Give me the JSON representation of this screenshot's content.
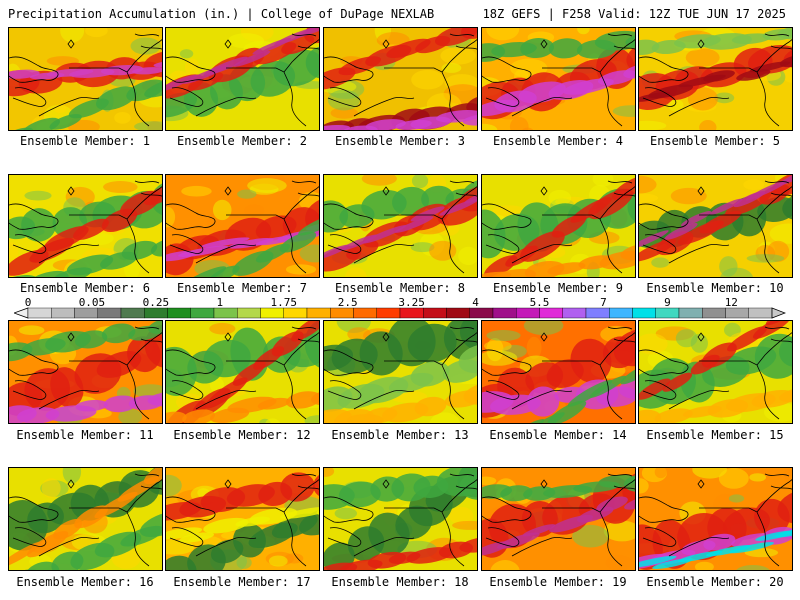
{
  "header": {
    "title": "Precipitation Accumulation (in.) | College of DuPage NEXLAB",
    "run_info": "18Z GEFS | F258 Valid: 12Z TUE JUN 17 2025"
  },
  "colorbar": {
    "labels": [
      "0",
      "0.05",
      "0.25",
      "1",
      "1.75",
      "2.5",
      "3.25",
      "4",
      "5.5",
      "7",
      "9",
      "12"
    ],
    "colors": [
      "#d6d6d6",
      "#bdbdbd",
      "#9e9e9e",
      "#7a7a7a",
      "#4f7a4f",
      "#2e7d2e",
      "#1f8f1f",
      "#3fa83f",
      "#7cc34a",
      "#b4d84a",
      "#f0f000",
      "#ffd700",
      "#ffb000",
      "#ff8c00",
      "#ff6a00",
      "#ff3c00",
      "#e8161b",
      "#c40e18",
      "#a00a14",
      "#8a0a4a",
      "#a0108a",
      "#c41ab8",
      "#e02ad8",
      "#b060f0",
      "#7f7fff",
      "#3fb6ff",
      "#00e0e8",
      "#40d8c0",
      "#80b0b0",
      "#909090",
      "#a8a8a8",
      "#c0c0c0"
    ]
  },
  "members": [
    {
      "caption": "Ensemble Member: 1",
      "base": "#f2c600",
      "bands": [
        {
          "c": "#e02010",
          "y": 0.45,
          "w": 0.22,
          "a": -6
        },
        {
          "c": "#d040c0",
          "y": 0.42,
          "w": 0.08,
          "a": -4
        },
        {
          "c": "#3fa83f",
          "y": 0.82,
          "w": 0.18,
          "a": -20
        }
      ]
    },
    {
      "caption": "Ensemble Member: 2",
      "base": "#e8e000",
      "bands": [
        {
          "c": "#3fa83f",
          "y": 0.55,
          "w": 0.3,
          "a": -18
        },
        {
          "c": "#e02010",
          "y": 0.35,
          "w": 0.18,
          "a": -22
        },
        {
          "c": "#c03090",
          "y": 0.3,
          "w": 0.06,
          "a": -22
        }
      ]
    },
    {
      "caption": "Ensemble Member: 3",
      "base": "#f0c000",
      "bands": [
        {
          "c": "#e02010",
          "y": 0.25,
          "w": 0.2,
          "a": -18
        },
        {
          "c": "#a00a14",
          "y": 0.9,
          "w": 0.2,
          "a": -10
        },
        {
          "c": "#d040d0",
          "y": 0.93,
          "w": 0.1,
          "a": -6
        }
      ]
    },
    {
      "caption": "Ensemble Member: 4",
      "base": "#ffb000",
      "bands": [
        {
          "c": "#e02010",
          "y": 0.55,
          "w": 0.35,
          "a": -15
        },
        {
          "c": "#d040d0",
          "y": 0.6,
          "w": 0.18,
          "a": -12
        },
        {
          "c": "#3fa83f",
          "y": 0.2,
          "w": 0.2,
          "a": -5
        }
      ]
    },
    {
      "caption": "Ensemble Member: 5",
      "base": "#f5d000",
      "bands": [
        {
          "c": "#e02010",
          "y": 0.45,
          "w": 0.3,
          "a": -12
        },
        {
          "c": "#a00a14",
          "y": 0.5,
          "w": 0.1,
          "a": -12
        },
        {
          "c": "#7cc34a",
          "y": 0.15,
          "w": 0.15,
          "a": -5
        }
      ]
    },
    {
      "caption": "Ensemble Member: 6",
      "base": "#f0e000",
      "bands": [
        {
          "c": "#3fa83f",
          "y": 0.4,
          "w": 0.3,
          "a": -10
        },
        {
          "c": "#e02010",
          "y": 0.55,
          "w": 0.16,
          "a": -25
        },
        {
          "c": "#3fa83f",
          "y": 0.9,
          "w": 0.15,
          "a": -15
        }
      ]
    },
    {
      "caption": "Ensemble Member: 7",
      "base": "#ff9000",
      "bands": [
        {
          "c": "#e02010",
          "y": 0.6,
          "w": 0.35,
          "a": -15
        },
        {
          "c": "#d040d0",
          "y": 0.65,
          "w": 0.08,
          "a": -10
        },
        {
          "c": "#3fa83f",
          "y": 0.85,
          "w": 0.15,
          "a": -25
        }
      ]
    },
    {
      "caption": "Ensemble Member: 8",
      "base": "#e8e000",
      "bands": [
        {
          "c": "#3fa83f",
          "y": 0.3,
          "w": 0.3,
          "a": -8
        },
        {
          "c": "#e02010",
          "y": 0.55,
          "w": 0.22,
          "a": -22
        },
        {
          "c": "#c03090",
          "y": 0.5,
          "w": 0.06,
          "a": -22
        }
      ]
    },
    {
      "caption": "Ensemble Member: 9",
      "base": "#e8e000",
      "bands": [
        {
          "c": "#3fa83f",
          "y": 0.45,
          "w": 0.4,
          "a": -12
        },
        {
          "c": "#e02010",
          "y": 0.55,
          "w": 0.18,
          "a": -30
        },
        {
          "c": "#ff8c00",
          "y": 0.9,
          "w": 0.15,
          "a": -10
        }
      ]
    },
    {
      "caption": "Ensemble Member: 10",
      "base": "#f5d000",
      "bands": [
        {
          "c": "#2e7d2e",
          "y": 0.45,
          "w": 0.35,
          "a": -10
        },
        {
          "c": "#e02010",
          "y": 0.45,
          "w": 0.16,
          "a": -25
        },
        {
          "c": "#c03090",
          "y": 0.35,
          "w": 0.06,
          "a": -25
        }
      ]
    },
    {
      "caption": "Ensemble Member: 11",
      "base": "#ff9000",
      "bands": [
        {
          "c": "#e02010",
          "y": 0.55,
          "w": 0.35,
          "a": -20
        },
        {
          "c": "#d040d0",
          "y": 0.85,
          "w": 0.15,
          "a": -5
        },
        {
          "c": "#3fa83f",
          "y": 0.2,
          "w": 0.2,
          "a": -10
        }
      ]
    },
    {
      "caption": "Ensemble Member: 12",
      "base": "#e8e000",
      "bands": [
        {
          "c": "#3fa83f",
          "y": 0.35,
          "w": 0.45,
          "a": -10
        },
        {
          "c": "#e02010",
          "y": 0.55,
          "w": 0.18,
          "a": -35
        },
        {
          "c": "#ff8c00",
          "y": 0.85,
          "w": 0.15,
          "a": -10
        }
      ]
    },
    {
      "caption": "Ensemble Member: 13",
      "base": "#e8e000",
      "bands": [
        {
          "c": "#2e7d2e",
          "y": 0.25,
          "w": 0.4,
          "a": -10
        },
        {
          "c": "#7cc34a",
          "y": 0.6,
          "w": 0.25,
          "a": -15
        },
        {
          "c": "#ffb000",
          "y": 0.85,
          "w": 0.18,
          "a": -10
        }
      ]
    },
    {
      "caption": "Ensemble Member: 14",
      "base": "#ff7000",
      "bands": [
        {
          "c": "#e02010",
          "y": 0.5,
          "w": 0.4,
          "a": -20
        },
        {
          "c": "#d040d0",
          "y": 0.75,
          "w": 0.25,
          "a": -5
        },
        {
          "c": "#3fa83f",
          "y": 0.9,
          "w": 0.12,
          "a": -30
        }
      ]
    },
    {
      "caption": "Ensemble Member: 15",
      "base": "#e8e000",
      "bands": [
        {
          "c": "#3fa83f",
          "y": 0.5,
          "w": 0.4,
          "a": -15
        },
        {
          "c": "#e02010",
          "y": 0.35,
          "w": 0.15,
          "a": -30
        },
        {
          "c": "#ffb000",
          "y": 0.85,
          "w": 0.15,
          "a": -10
        }
      ]
    },
    {
      "caption": "Ensemble Member: 16",
      "base": "#e8e000",
      "bands": [
        {
          "c": "#2e7d2e",
          "y": 0.35,
          "w": 0.45,
          "a": -15
        },
        {
          "c": "#3fa83f",
          "y": 0.85,
          "w": 0.2,
          "a": -20
        },
        {
          "c": "#ff8c00",
          "y": 0.5,
          "w": 0.12,
          "a": -30
        }
      ]
    },
    {
      "caption": "Ensemble Member: 17",
      "base": "#ffb000",
      "bands": [
        {
          "c": "#e02010",
          "y": 0.3,
          "w": 0.25,
          "a": -10
        },
        {
          "c": "#2e7d2e",
          "y": 0.75,
          "w": 0.3,
          "a": -20
        },
        {
          "c": "#f0f000",
          "y": 0.55,
          "w": 0.12,
          "a": -10
        }
      ]
    },
    {
      "caption": "Ensemble Member: 18",
      "base": "#e8e000",
      "bands": [
        {
          "c": "#2e7d2e",
          "y": 0.55,
          "w": 0.35,
          "a": -30
        },
        {
          "c": "#3fa83f",
          "y": 0.2,
          "w": 0.25,
          "a": -5
        },
        {
          "c": "#e02010",
          "y": 0.9,
          "w": 0.15,
          "a": -10
        }
      ]
    },
    {
      "caption": "Ensemble Member: 19",
      "base": "#ff9000",
      "bands": [
        {
          "c": "#e02010",
          "y": 0.45,
          "w": 0.4,
          "a": -18
        },
        {
          "c": "#c03090",
          "y": 0.55,
          "w": 0.1,
          "a": -18
        },
        {
          "c": "#3fa83f",
          "y": 0.2,
          "w": 0.15,
          "a": -5
        }
      ]
    },
    {
      "caption": "Ensemble Member: 20",
      "base": "#ff9000",
      "bands": [
        {
          "c": "#e02010",
          "y": 0.6,
          "w": 0.4,
          "a": -15
        },
        {
          "c": "#d040d0",
          "y": 0.75,
          "w": 0.15,
          "a": -12
        },
        {
          "c": "#00e0e8",
          "y": 0.8,
          "w": 0.05,
          "a": -12
        }
      ]
    }
  ]
}
